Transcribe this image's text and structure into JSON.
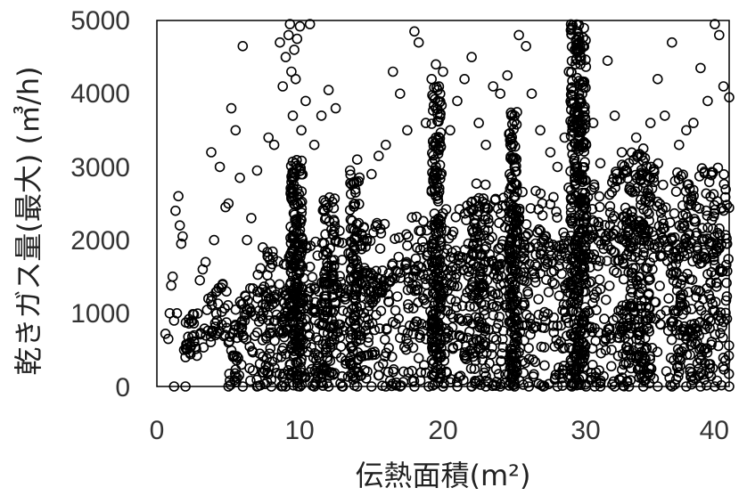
{
  "chart_data": {
    "type": "scatter",
    "xlabel": "伝熱面積(m²)",
    "ylabel": "乾きガス量(最大) (㎥/h)",
    "xlim": [
      0,
      40
    ],
    "ylim": [
      0,
      5000
    ],
    "x_ticks": [
      "0",
      "10",
      "20",
      "30",
      "40"
    ],
    "y_ticks": [
      "0",
      "1000",
      "2000",
      "3000",
      "4000",
      "5000"
    ],
    "grid": false,
    "legend": "none",
    "marker": "hollow-circle",
    "marker_color": "#000000",
    "series": [
      {
        "points": [
          [
            0.6,
            720
          ],
          [
            0.8,
            650
          ],
          [
            0.9,
            1000
          ],
          [
            1.0,
            1380
          ],
          [
            1.1,
            1500
          ],
          [
            1.2,
            900
          ],
          [
            1.3,
            2400
          ],
          [
            1.4,
            1000
          ],
          [
            1.5,
            2600
          ],
          [
            1.6,
            2200
          ],
          [
            1.7,
            1950
          ],
          [
            1.8,
            2050
          ],
          [
            1.9,
            500
          ],
          [
            2.0,
            400
          ],
          [
            1.2,
            0
          ],
          [
            2.0,
            0
          ],
          [
            2.3,
            600
          ],
          [
            2.6,
            700
          ],
          [
            2.8,
            420
          ],
          [
            3.0,
            1450
          ],
          [
            3.2,
            1600
          ],
          [
            3.4,
            1700
          ],
          [
            3.6,
            1200
          ],
          [
            3.8,
            3200
          ],
          [
            4.0,
            2000
          ],
          [
            4.2,
            900
          ],
          [
            4.4,
            3000
          ],
          [
            4.6,
            1400
          ],
          [
            4.8,
            2450
          ],
          [
            5.0,
            2500
          ],
          [
            5.2,
            3800
          ],
          [
            5.5,
            3500
          ],
          [
            5.8,
            2850
          ],
          [
            6.0,
            4650
          ],
          [
            6.3,
            2000
          ],
          [
            6.6,
            2300
          ],
          [
            7.0,
            2950
          ],
          [
            7.4,
            1900
          ],
          [
            7.8,
            3400
          ],
          [
            8.2,
            3300
          ],
          [
            8.6,
            4700
          ],
          [
            8.8,
            4100
          ],
          [
            9.0,
            4500
          ],
          [
            9.2,
            4800
          ],
          [
            9.3,
            4950
          ],
          [
            9.4,
            4300
          ],
          [
            9.5,
            3700
          ],
          [
            9.6,
            4600
          ],
          [
            9.7,
            4200
          ],
          [
            9.8,
            4750
          ],
          [
            10.0,
            4920
          ],
          [
            10.1,
            3500
          ],
          [
            10.4,
            3900
          ],
          [
            10.7,
            4950
          ],
          [
            11.0,
            3300
          ],
          [
            11.5,
            3700
          ],
          [
            12.0,
            4050
          ],
          [
            12.5,
            3800
          ],
          [
            13.5,
            2950
          ],
          [
            14.0,
            3100
          ],
          [
            15.0,
            2900
          ],
          [
            15.5,
            3150
          ],
          [
            16.0,
            3300
          ],
          [
            16.5,
            4300
          ],
          [
            17.0,
            4000
          ],
          [
            17.5,
            3500
          ],
          [
            18.0,
            4850
          ],
          [
            18.3,
            4700
          ],
          [
            18.8,
            3600
          ],
          [
            19.2,
            4200
          ],
          [
            19.5,
            4400
          ],
          [
            19.8,
            4000
          ],
          [
            20.0,
            4300
          ],
          [
            20.5,
            3500
          ],
          [
            21.0,
            3900
          ],
          [
            21.5,
            4200
          ],
          [
            22.0,
            4500
          ],
          [
            22.5,
            3600
          ],
          [
            23.0,
            3300
          ],
          [
            23.5,
            4100
          ],
          [
            24.0,
            4000
          ],
          [
            24.5,
            4250
          ],
          [
            25.0,
            3700
          ],
          [
            25.3,
            4800
          ],
          [
            25.8,
            4650
          ],
          [
            26.2,
            4000
          ],
          [
            26.8,
            3500
          ],
          [
            27.5,
            3200
          ],
          [
            28.0,
            3000
          ],
          [
            28.5,
            3400
          ],
          [
            28.8,
            4300
          ],
          [
            29.0,
            4900
          ],
          [
            29.2,
            4600
          ],
          [
            29.4,
            4850
          ],
          [
            29.5,
            4000
          ],
          [
            29.6,
            4400
          ],
          [
            29.8,
            3800
          ],
          [
            30.0,
            3300
          ],
          [
            30.5,
            3600
          ],
          [
            31.0,
            3050
          ],
          [
            31.5,
            4450
          ],
          [
            32.0,
            3700
          ],
          [
            32.5,
            3200
          ],
          [
            33.0,
            3050
          ],
          [
            33.5,
            3400
          ],
          [
            34.0,
            3250
          ],
          [
            34.5,
            3600
          ],
          [
            35.0,
            4200
          ],
          [
            35.5,
            3700
          ],
          [
            36.0,
            4700
          ],
          [
            36.5,
            3300
          ],
          [
            37.0,
            3500
          ],
          [
            37.5,
            3600
          ],
          [
            38.0,
            4350
          ],
          [
            38.5,
            3900
          ],
          [
            39.0,
            4950
          ],
          [
            39.3,
            4800
          ],
          [
            39.6,
            4100
          ],
          [
            40.0,
            3950
          ],
          [
            5.0,
            0
          ],
          [
            6.0,
            0
          ],
          [
            7.0,
            0
          ],
          [
            8.0,
            0
          ],
          [
            9.0,
            0
          ],
          [
            10.0,
            0
          ],
          [
            11.0,
            0
          ],
          [
            12.0,
            0
          ],
          [
            13.0,
            0
          ],
          [
            14.0,
            0
          ],
          [
            15.0,
            0
          ],
          [
            16.0,
            0
          ],
          [
            17.0,
            0
          ],
          [
            18.0,
            0
          ],
          [
            19.0,
            0
          ],
          [
            20.0,
            0
          ],
          [
            21.0,
            0
          ],
          [
            22.0,
            0
          ],
          [
            23.0,
            0
          ],
          [
            24.0,
            0
          ],
          [
            25.0,
            0
          ],
          [
            26.0,
            0
          ],
          [
            27.0,
            0
          ],
          [
            28.0,
            0
          ],
          [
            29.0,
            0
          ],
          [
            30.0,
            0
          ],
          [
            31.0,
            0
          ],
          [
            32.0,
            0
          ],
          [
            33.0,
            0
          ],
          [
            34.0,
            0
          ],
          [
            35.0,
            0
          ],
          [
            36.0,
            0
          ],
          [
            37.0,
            0
          ],
          [
            38.0,
            0
          ],
          [
            39.0,
            0
          ],
          [
            40.0,
            0
          ],
          [
            25.0,
            3000
          ],
          [
            25.0,
            2600
          ],
          [
            25.0,
            2200
          ],
          [
            25.0,
            1800
          ],
          [
            25.0,
            1400
          ],
          [
            25.0,
            1000
          ],
          [
            25.0,
            600
          ],
          [
            25.0,
            200
          ],
          [
            19.5,
            3800
          ],
          [
            19.5,
            3400
          ],
          [
            19.5,
            3000
          ],
          [
            19.5,
            2600
          ],
          [
            19.5,
            2200
          ],
          [
            19.5,
            1800
          ],
          [
            19.5,
            1400
          ],
          [
            19.5,
            1000
          ],
          [
            19.5,
            600
          ],
          [
            19.5,
            200
          ],
          [
            9.8,
            2600
          ],
          [
            9.8,
            2200
          ],
          [
            9.8,
            1800
          ],
          [
            9.8,
            1400
          ],
          [
            9.8,
            1000
          ],
          [
            9.8,
            600
          ],
          [
            9.8,
            200
          ],
          [
            29.5,
            3700
          ],
          [
            29.5,
            3300
          ],
          [
            29.5,
            2900
          ],
          [
            29.5,
            2500
          ],
          [
            29.5,
            2100
          ],
          [
            29.5,
            1700
          ],
          [
            29.5,
            1300
          ],
          [
            29.5,
            900
          ],
          [
            29.5,
            500
          ],
          [
            29.5,
            100
          ]
        ],
        "clusters": [
          {
            "x_from": 5.0,
            "x_to": 40.0,
            "y_at_x_from": [
              0,
              1300
            ],
            "y_at_x_to": [
              0,
              2500
            ],
            "count": 1150
          },
          {
            "x_from": 7.0,
            "x_to": 36.0,
            "y_at_x_from": [
              800,
              1900
            ],
            "y_at_x_to": [
              1800,
              3100
            ],
            "count": 420
          },
          {
            "x_from": 36.0,
            "x_to": 40.0,
            "y_at_x_from": [
              0,
              3000
            ],
            "y_at_x_to": [
              0,
              3000
            ],
            "count": 160
          },
          {
            "x_from": 9.3,
            "x_to": 10.2,
            "y_at_x_from": [
              0,
              3100
            ],
            "y_at_x_to": [
              0,
              3100
            ],
            "count": 180
          },
          {
            "x_from": 19.2,
            "x_to": 19.9,
            "y_at_x_from": [
              0,
              4100
            ],
            "y_at_x_to": [
              0,
              4100
            ],
            "count": 180
          },
          {
            "x_from": 24.6,
            "x_to": 25.2,
            "y_at_x_from": [
              0,
              3800
            ],
            "y_at_x_to": [
              0,
              3800
            ],
            "count": 160
          },
          {
            "x_from": 28.9,
            "x_to": 30.0,
            "y_at_x_from": [
              0,
              4950
            ],
            "y_at_x_to": [
              0,
              4950
            ],
            "count": 320
          },
          {
            "x_from": 32.5,
            "x_to": 34.5,
            "y_at_x_from": [
              0,
              3200
            ],
            "y_at_x_to": [
              0,
              3200
            ],
            "count": 160
          },
          {
            "x_from": 13.5,
            "x_to": 14.3,
            "y_at_x_from": [
              0,
              2900
            ],
            "y_at_x_to": [
              0,
              2900
            ],
            "count": 90
          },
          {
            "x_from": 11.5,
            "x_to": 12.5,
            "y_at_x_from": [
              0,
              2600
            ],
            "y_at_x_to": [
              0,
              2600
            ],
            "count": 80
          },
          {
            "x_from": 22.0,
            "x_to": 23.0,
            "y_at_x_from": [
              0,
              2800
            ],
            "y_at_x_to": [
              0,
              2800
            ],
            "count": 80
          },
          {
            "x_from": 2.0,
            "x_to": 5.0,
            "y_at_x_from": [
              400,
              900
            ],
            "y_at_x_to": [
              700,
              1500
            ],
            "count": 60
          }
        ]
      }
    ]
  }
}
